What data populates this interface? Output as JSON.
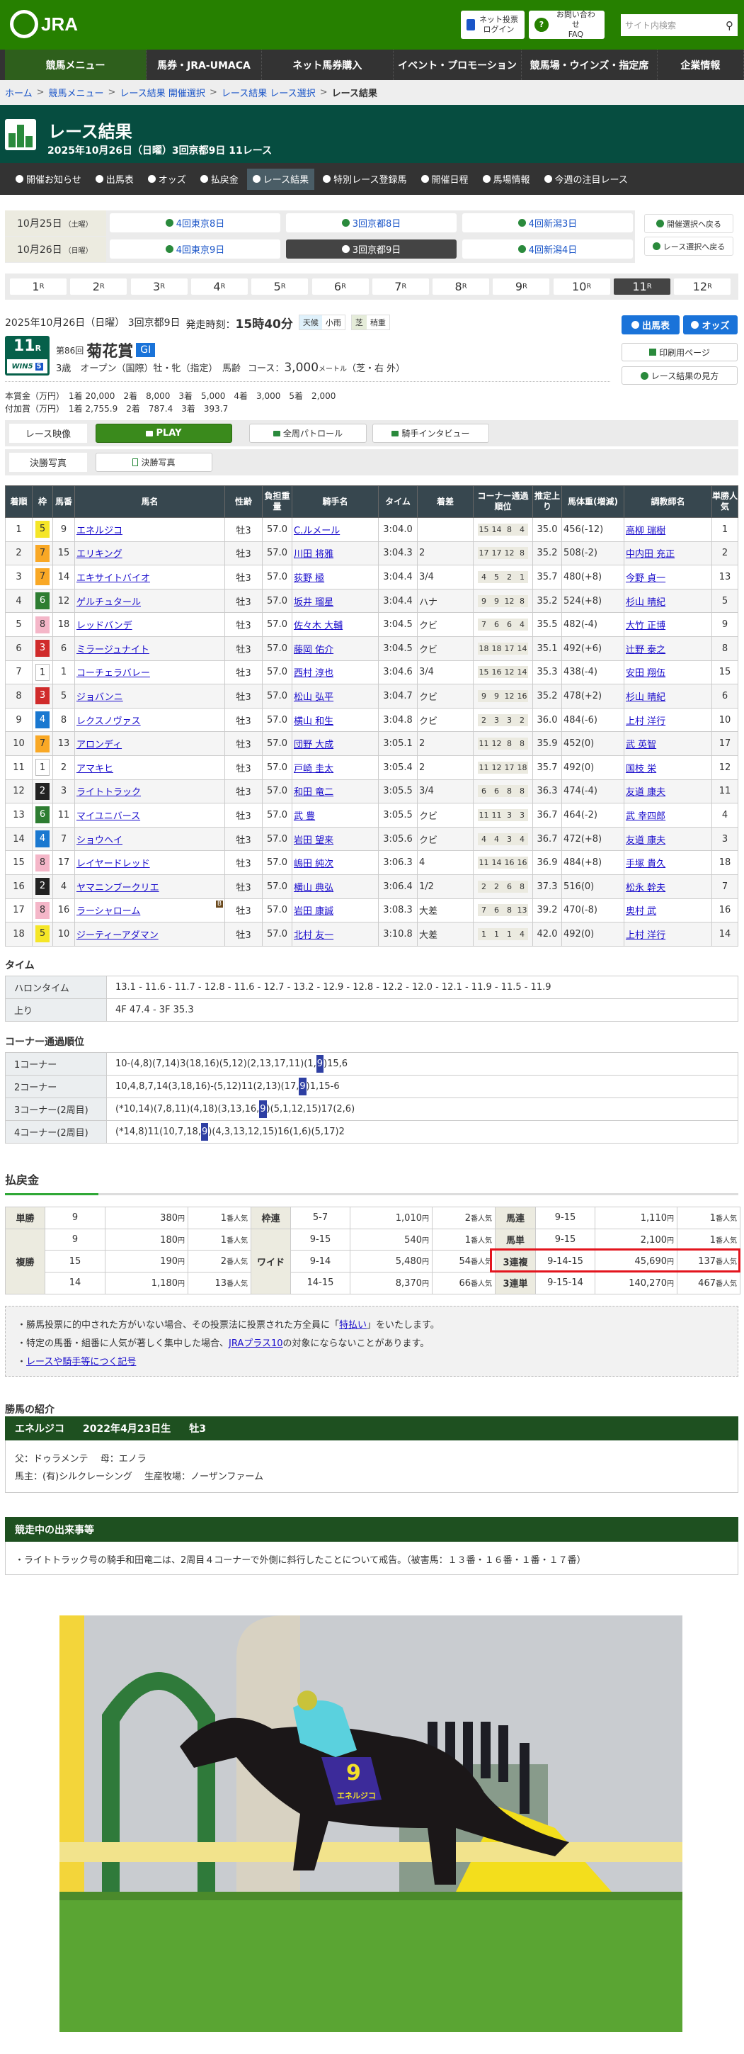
{
  "header": {
    "logo": "JRA",
    "login_l1": "ネット投票",
    "login_l2": "ログイン",
    "faq_l1": "お問い合わせ",
    "faq_l2": "FAQ",
    "search_placeholder": "サイト内検索"
  },
  "global_nav": [
    "競馬メニュー",
    "馬券・JRA-UMACA",
    "ネット馬券購入",
    "イベント・プロモーション",
    "競馬場・ウインズ・指定席",
    "企業情報"
  ],
  "breadcrumb": [
    "ホーム",
    "競馬メニュー",
    "レース結果 開催選択",
    "レース結果 レース選択",
    "レース結果"
  ],
  "page": {
    "title": "レース結果",
    "subtitle": "2025年10月26日（日曜）3回京都9日 11レース"
  },
  "sub_nav": [
    "開催お知らせ",
    "出馬表",
    "オッズ",
    "払戻金",
    "レース結果",
    "特別レース登録馬",
    "開催日程",
    "馬場情報",
    "今週の注目レース"
  ],
  "sub_nav_active": 4,
  "meetings": [
    {
      "date": "10月25日",
      "dow": "（土曜）",
      "items": [
        "4回東京8日",
        "3回京都8日",
        "4回新潟3日"
      ]
    },
    {
      "date": "10月26日",
      "dow": "（日曜）",
      "items": [
        "4回東京9日",
        "3回京都9日",
        "4回新潟4日"
      ]
    }
  ],
  "meeting_active": [
    1,
    1
  ],
  "back_buttons": [
    "開催選択へ戻る",
    "レース選択へ戻る"
  ],
  "race_numbers": [
    "1",
    "2",
    "3",
    "4",
    "5",
    "6",
    "7",
    "8",
    "9",
    "10",
    "11",
    "12"
  ],
  "race_unit": "R",
  "race_active": 10,
  "race": {
    "date_line": "2025年10月26日（日曜） 3回京都9日",
    "start_label": "発走時刻：",
    "start_time": "15時40分",
    "weather_label": "天候",
    "weather": "小雨",
    "turf_label": "芝",
    "going": "稍重",
    "number": "11",
    "number_unit": "R",
    "win5": "WIN5",
    "win5_no": "5",
    "edition": "第86回",
    "name": "菊花賞",
    "grade": "GI",
    "conditions": "3歳　オープン（国際）牡・牝（指定）　馬齢",
    "course_label": "コース：",
    "distance": "3,000",
    "distance_unit": "メートル",
    "course_detail": "（芝・右 外）",
    "prize1": "本賞金（万円）　1着 20,000　2着　8,000　3着　5,000　4着　3,000　5着　2,000",
    "prize2": "付加賞（万円）　1着 2,755.9　2着　787.4　3着　393.7"
  },
  "side_buttons": {
    "entries": "出馬表",
    "odds": "オッズ",
    "print": "印刷用ページ",
    "guide": "レース結果の見方"
  },
  "media": {
    "video_label": "レース映像",
    "play": "PLAY",
    "patrol": "全周パトロール",
    "interview": "騎手インタビュー",
    "photo_label": "決勝写真",
    "photo_btn": "決勝写真"
  },
  "waku_colors": {
    "1": "#ffffff",
    "2": "#222222",
    "3": "#d02b2b",
    "4": "#1a78d0",
    "5": "#f5e627",
    "6": "#2e7d32",
    "7": "#f9a825",
    "8": "#f4b6c8"
  },
  "results": {
    "headers": [
      "着順",
      "枠",
      "馬番",
      "馬名",
      "性齢",
      "負担重量",
      "騎手名",
      "タイム",
      "着差",
      "コーナー通過順位",
      "推定上り",
      "馬体重(増減)",
      "調教師名",
      "単勝人気"
    ],
    "rows": [
      {
        "pos": "1",
        "waku": "5",
        "num": "9",
        "horse": "エネルジコ",
        "sa": "牡3",
        "wt": "57.0",
        "jockey": "C.ルメール",
        "time": "3:04.0",
        "margin": "",
        "corners": [
          "15",
          "14",
          "8",
          "4"
        ],
        "last3f": "35.0",
        "bw": "456(-12)",
        "trainer": "高柳 瑞樹",
        "pop": "1"
      },
      {
        "pos": "2",
        "waku": "7",
        "num": "15",
        "horse": "エリキング",
        "sa": "牡3",
        "wt": "57.0",
        "jockey": "川田 将雅",
        "time": "3:04.3",
        "margin": "2",
        "corners": [
          "17",
          "17",
          "12",
          "8"
        ],
        "last3f": "35.2",
        "bw": "508(-2)",
        "trainer": "中内田 充正",
        "pop": "2"
      },
      {
        "pos": "3",
        "waku": "7",
        "num": "14",
        "horse": "エキサイトバイオ",
        "sa": "牡3",
        "wt": "57.0",
        "jockey": "荻野 極",
        "time": "3:04.4",
        "margin": "3/4",
        "corners": [
          "4",
          "5",
          "2",
          "1"
        ],
        "last3f": "35.7",
        "bw": "480(+8)",
        "trainer": "今野 貞一",
        "pop": "13"
      },
      {
        "pos": "4",
        "waku": "6",
        "num": "12",
        "horse": "ゲルチュタール",
        "sa": "牡3",
        "wt": "57.0",
        "jockey": "坂井 瑠星",
        "time": "3:04.4",
        "margin": "ハナ",
        "corners": [
          "9",
          "9",
          "12",
          "8"
        ],
        "last3f": "35.2",
        "bw": "524(+8)",
        "trainer": "杉山 晴紀",
        "pop": "5"
      },
      {
        "pos": "5",
        "waku": "8",
        "num": "18",
        "horse": "レッドバンデ",
        "sa": "牡3",
        "wt": "57.0",
        "jockey": "佐々木 大輔",
        "time": "3:04.5",
        "margin": "クビ",
        "corners": [
          "7",
          "6",
          "6",
          "4"
        ],
        "last3f": "35.5",
        "bw": "482(-4)",
        "trainer": "大竹 正博",
        "pop": "9"
      },
      {
        "pos": "6",
        "waku": "3",
        "num": "6",
        "horse": "ミラージュナイト",
        "sa": "牡3",
        "wt": "57.0",
        "jockey": "藤岡 佑介",
        "time": "3:04.5",
        "margin": "クビ",
        "corners": [
          "18",
          "18",
          "17",
          "14"
        ],
        "last3f": "35.1",
        "bw": "492(+6)",
        "trainer": "辻野 泰之",
        "pop": "8"
      },
      {
        "pos": "7",
        "waku": "1",
        "num": "1",
        "horse": "コーチェラバレー",
        "sa": "牡3",
        "wt": "57.0",
        "jockey": "西村 淳也",
        "time": "3:04.6",
        "margin": "3/4",
        "corners": [
          "15",
          "16",
          "12",
          "14"
        ],
        "last3f": "35.3",
        "bw": "438(-4)",
        "trainer": "安田 翔伍",
        "pop": "15"
      },
      {
        "pos": "8",
        "waku": "3",
        "num": "5",
        "horse": "ジョバンニ",
        "sa": "牡3",
        "wt": "57.0",
        "jockey": "松山 弘平",
        "time": "3:04.7",
        "margin": "クビ",
        "corners": [
          "9",
          "9",
          "12",
          "16"
        ],
        "last3f": "35.2",
        "bw": "478(+2)",
        "trainer": "杉山 晴紀",
        "pop": "6"
      },
      {
        "pos": "9",
        "waku": "4",
        "num": "8",
        "horse": "レクスノヴァス",
        "sa": "牡3",
        "wt": "57.0",
        "jockey": "横山 和生",
        "time": "3:04.8",
        "margin": "クビ",
        "corners": [
          "2",
          "3",
          "3",
          "2"
        ],
        "last3f": "36.0",
        "bw": "484(-6)",
        "trainer": "上村 洋行",
        "pop": "10"
      },
      {
        "pos": "10",
        "waku": "7",
        "num": "13",
        "horse": "アロンディ",
        "sa": "牡3",
        "wt": "57.0",
        "jockey": "団野 大成",
        "time": "3:05.1",
        "margin": "2",
        "corners": [
          "11",
          "12",
          "8",
          "8"
        ],
        "last3f": "35.9",
        "bw": "452(0)",
        "trainer": "武 英智",
        "pop": "17"
      },
      {
        "pos": "11",
        "waku": "1",
        "num": "2",
        "horse": "アマキヒ",
        "sa": "牡3",
        "wt": "57.0",
        "jockey": "戸崎 圭太",
        "time": "3:05.4",
        "margin": "2",
        "corners": [
          "11",
          "12",
          "17",
          "18"
        ],
        "last3f": "35.7",
        "bw": "492(0)",
        "trainer": "国枝 栄",
        "pop": "12"
      },
      {
        "pos": "12",
        "waku": "2",
        "num": "3",
        "horse": "ライトトラック",
        "sa": "牡3",
        "wt": "57.0",
        "jockey": "和田 竜二",
        "time": "3:05.5",
        "margin": "3/4",
        "corners": [
          "6",
          "6",
          "8",
          "8"
        ],
        "last3f": "36.3",
        "bw": "474(-4)",
        "trainer": "友道 康夫",
        "pop": "11"
      },
      {
        "pos": "13",
        "waku": "6",
        "num": "11",
        "horse": "マイユニバース",
        "sa": "牡3",
        "wt": "57.0",
        "jockey": "武 豊",
        "time": "3:05.5",
        "margin": "クビ",
        "corners": [
          "11",
          "11",
          "3",
          "3"
        ],
        "last3f": "36.7",
        "bw": "464(-2)",
        "trainer": "武 幸四郎",
        "pop": "4"
      },
      {
        "pos": "14",
        "waku": "4",
        "num": "7",
        "horse": "ショウヘイ",
        "sa": "牡3",
        "wt": "57.0",
        "jockey": "岩田 望来",
        "time": "3:05.6",
        "margin": "クビ",
        "corners": [
          "4",
          "4",
          "3",
          "4"
        ],
        "last3f": "36.7",
        "bw": "472(+8)",
        "trainer": "友道 康夫",
        "pop": "3"
      },
      {
        "pos": "15",
        "waku": "8",
        "num": "17",
        "horse": "レイヤードレッド",
        "sa": "牡3",
        "wt": "57.0",
        "jockey": "嶋田 純次",
        "time": "3:06.3",
        "margin": "4",
        "corners": [
          "11",
          "14",
          "16",
          "16"
        ],
        "last3f": "36.9",
        "bw": "484(+8)",
        "trainer": "手塚 貴久",
        "pop": "18"
      },
      {
        "pos": "16",
        "waku": "2",
        "num": "4",
        "horse": "ヤマニンブークリエ",
        "sa": "牡3",
        "wt": "57.0",
        "jockey": "横山 典弘",
        "time": "3:06.4",
        "margin": "1/2",
        "corners": [
          "2",
          "2",
          "6",
          "8"
        ],
        "last3f": "37.3",
        "bw": "516(0)",
        "trainer": "松永 幹夫",
        "pop": "7"
      },
      {
        "pos": "17",
        "waku": "8",
        "num": "16",
        "horse": "ラーシャローム",
        "blinker": "B",
        "sa": "牡3",
        "wt": "57.0",
        "jockey": "岩田 康誠",
        "time": "3:08.3",
        "margin": "大差",
        "corners": [
          "7",
          "6",
          "8",
          "13"
        ],
        "last3f": "39.2",
        "bw": "470(-8)",
        "trainer": "奥村 武",
        "pop": "16"
      },
      {
        "pos": "18",
        "waku": "5",
        "num": "10",
        "horse": "ジーティーアダマン",
        "sa": "牡3",
        "wt": "57.0",
        "jockey": "北村 友一",
        "time": "3:10.8",
        "margin": "大差",
        "corners": [
          "1",
          "1",
          "1",
          "4"
        ],
        "last3f": "42.0",
        "bw": "492(0)",
        "trainer": "上村 洋行",
        "pop": "14"
      }
    ]
  },
  "time": {
    "heading": "タイム",
    "furlong_label": "ハロンタイム",
    "furlong": "13.1 - 11.6 - 11.7 - 12.8 - 11.6 - 12.7 - 13.2 - 12.9 - 12.8 - 12.2 - 12.0 - 12.1 - 11.9 - 11.5 - 11.9",
    "last_label": "上り",
    "last": "4F 47.4 - 3F 35.3"
  },
  "corners": {
    "heading": "コーナー通過順位",
    "rows": [
      {
        "label": "1コーナー",
        "before": "10-(4,8)(7,14)3(18,16)(5,12)(2,13,17,11)(1,",
        "hl": "9",
        "after": ")15,6"
      },
      {
        "label": "2コーナー",
        "before": "10,4,8,7,14(3,18,16)-(5,12)11(2,13)(17,",
        "hl": "9",
        "after": ")1,15-6"
      },
      {
        "label": "3コーナー(2周目)",
        "before": "(*10,14)(7,8,11)(4,18)(3,13,16,",
        "hl": "9",
        "after": ")(5,1,12,15)17(2,6)"
      },
      {
        "label": "4コーナー(2周目)",
        "before": "(*14,8)11(10,7,18,",
        "hl": "9",
        "after": ")(4,3,13,12,15)16(1,6)(5,17)2"
      }
    ]
  },
  "payout": {
    "heading": "払戻金",
    "yen": "円",
    "pop_unit": "番人気",
    "tansho": {
      "label": "単勝",
      "rows": [
        {
          "combo": "9",
          "amount": "380",
          "pop": "1"
        }
      ]
    },
    "fukusho": {
      "label": "複勝",
      "rows": [
        {
          "combo": "9",
          "amount": "180",
          "pop": "1"
        },
        {
          "combo": "15",
          "amount": "190",
          "pop": "2"
        },
        {
          "combo": "14",
          "amount": "1,180",
          "pop": "13"
        }
      ]
    },
    "wakuren": {
      "label": "枠連",
      "rows": [
        {
          "combo": "5-7",
          "amount": "1,010",
          "pop": "2"
        }
      ]
    },
    "wide": {
      "label": "ワイド",
      "rows": [
        {
          "combo": "9-15",
          "amount": "540",
          "pop": "1"
        },
        {
          "combo": "9-14",
          "amount": "5,480",
          "pop": "54"
        },
        {
          "combo": "14-15",
          "amount": "8,370",
          "pop": "66"
        }
      ]
    },
    "right": [
      {
        "label": "馬連",
        "combo": "9-15",
        "amount": "1,110",
        "pop": "1"
      },
      {
        "label": "馬単",
        "combo": "9-15",
        "amount": "2,100",
        "pop": "1"
      },
      {
        "label": "3連複",
        "combo": "9-14-15",
        "amount": "45,690",
        "pop": "137",
        "highlighted": true
      },
      {
        "label": "3連単",
        "combo": "9-15-14",
        "amount": "140,270",
        "pop": "467"
      }
    ],
    "highlight_color": "#e3151e"
  },
  "notes": {
    "n1a": "・勝馬投票に的中された方がいない場合、その投票法に投票された方全員に「",
    "n1link": "特払い",
    "n1b": "」をいたします。",
    "n2a": "・特定の馬番・組番に人気が著しく集中した場合、",
    "n2link": "JRAプラス10",
    "n2b": "の対象にならないことがあります。",
    "n3bullet": "・",
    "n3link": "レースや騎手等につく記号"
  },
  "winner": {
    "heading": "勝馬の紹介",
    "name": "エネルジコ",
    "birth": "2022年4月23日生",
    "sa": "牡3",
    "line1": "父：ドゥラメンテ　 母：エノラ",
    "line2": "馬主：(有)シルクレーシング　 生産牧場：ノーザンファーム"
  },
  "incidents": {
    "heading": "競走中の出来事等",
    "text": "・ライトトラック号の騎手和田竜二は、2周目４コーナーで外側に斜行したことについて戒告。（被害馬：１３番・１６番・１番・１７番）"
  },
  "photo": {
    "saddle_number": "9",
    "saddle_name": "エネルジコ",
    "banner": "第86回 菊花賞"
  }
}
